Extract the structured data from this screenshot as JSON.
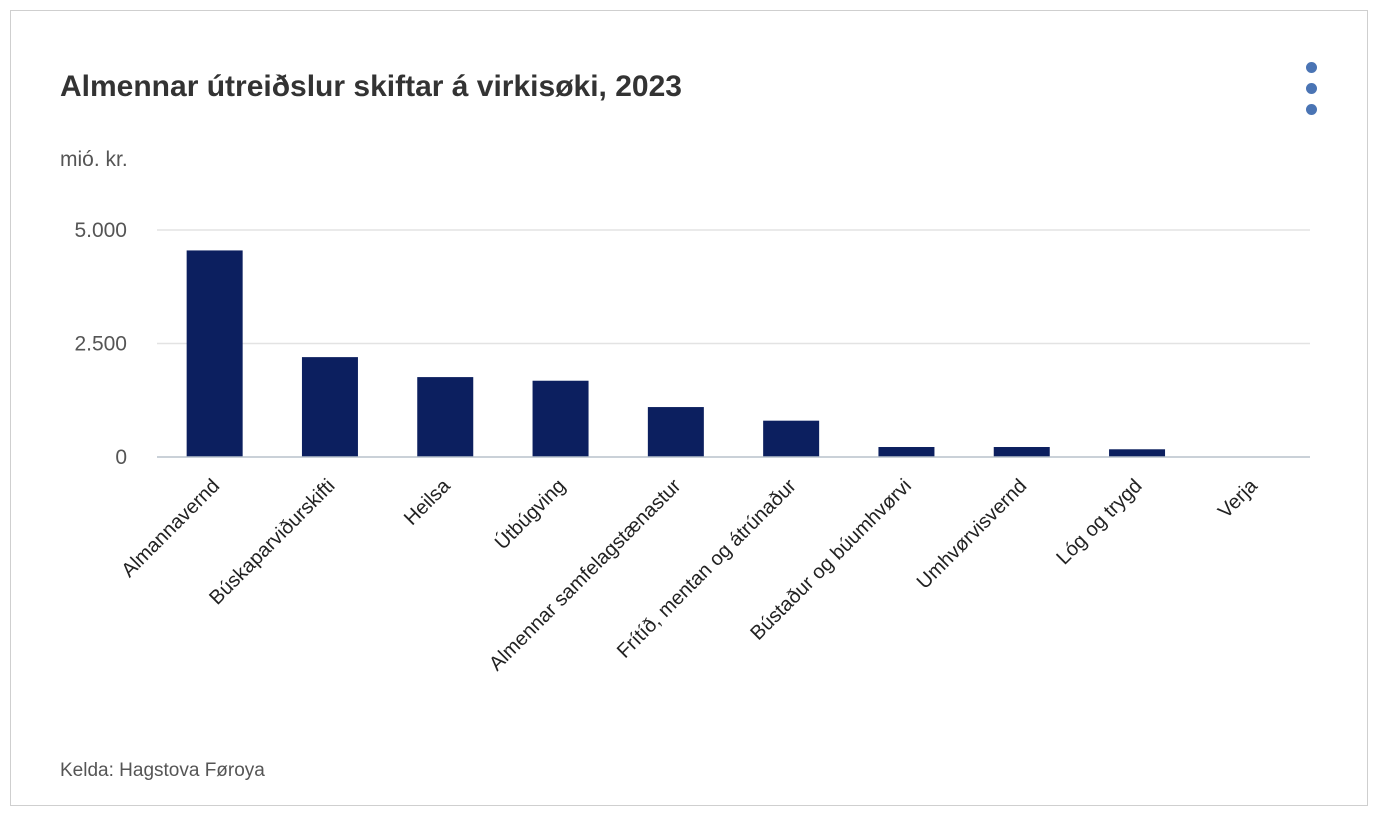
{
  "chart": {
    "title": "Almennar útreiðslur skiftar á virkisøki, 2023",
    "unit": "mió. kr.",
    "source": "Kelda: Hagstova Føroya",
    "menu_icon": "more-vertical-icon"
  },
  "colors": {
    "bar": "#0c1f5f",
    "menu_dots": "#4a74b4",
    "grid": "#e3e3e3",
    "axis": "#b8c2cc"
  },
  "chart_data": {
    "type": "bar",
    "title": "Almennar útreiðslur skiftar á virkisøki, 2023",
    "ylabel": "mió. kr.",
    "xlabel": "",
    "ylim": [
      0,
      5000
    ],
    "yticks": [
      0,
      2500,
      5000
    ],
    "ytick_labels": [
      "0",
      "2.500",
      "5.000"
    ],
    "grid": true,
    "categories": [
      "Almannavernd",
      "Búskaparviðurskifti",
      "Heilsa",
      "Útbúgving",
      "Almennar samfelagstænastur",
      "Frítíð, mentan og átrúnaður",
      "Bústaður og búumhvørvi",
      "Umhvørvisvernd",
      "Lóg og trygd",
      "Verja"
    ],
    "values": [
      4550,
      2200,
      1760,
      1680,
      1100,
      800,
      220,
      220,
      170,
      0
    ]
  }
}
